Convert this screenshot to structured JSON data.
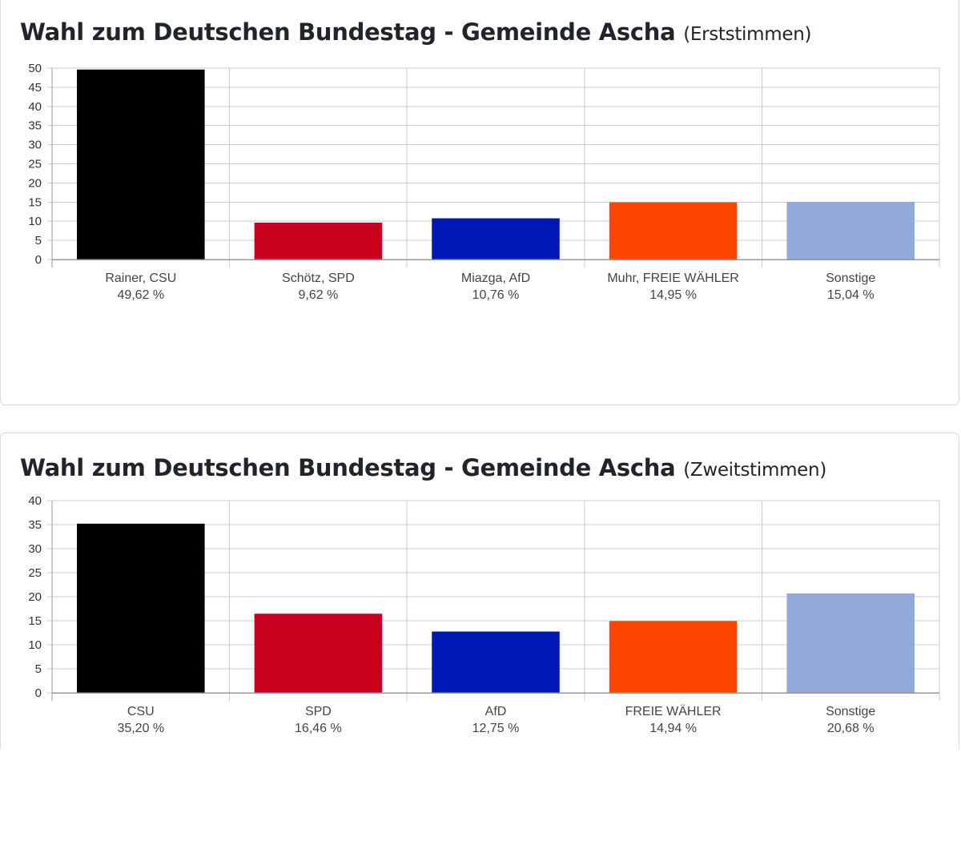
{
  "charts": [
    {
      "title_main": "Wahl zum Deutschen Bundestag - Gemeinde Ascha",
      "title_sub": "(Erststimmen)"
    },
    {
      "title_main": "Wahl zum Deutschen Bundestag - Gemeinde Ascha",
      "title_sub": "(Zweitstimmen)"
    }
  ],
  "chart_data": [
    {
      "type": "bar",
      "title": "Wahl zum Deutschen Bundestag - Gemeinde Ascha (Erststimmen)",
      "categories": [
        "Rainer, CSU",
        "Schötz, SPD",
        "Miazga, AfD",
        "Muhr, FREIE WÄHLER",
        "Sonstige"
      ],
      "values": [
        49.62,
        9.62,
        10.76,
        14.95,
        15.04
      ],
      "value_labels": [
        "49,62 %",
        "9,62 %",
        "10,76 %",
        "14,95 %",
        "15,04 %"
      ],
      "colors": [
        "#000000",
        "#c8001e",
        "#0018b5",
        "#ff4600",
        "#93a9d9"
      ],
      "ylim": [
        0,
        50
      ],
      "yticks": [
        0,
        5,
        10,
        15,
        20,
        25,
        30,
        35,
        40,
        45,
        50
      ],
      "grid": true,
      "xlabel": "",
      "ylabel": ""
    },
    {
      "type": "bar",
      "title": "Wahl zum Deutschen Bundestag - Gemeinde Ascha (Zweitstimmen)",
      "categories": [
        "CSU",
        "SPD",
        "AfD",
        "FREIE WÄHLER",
        "Sonstige"
      ],
      "values": [
        35.2,
        16.46,
        12.75,
        14.94,
        20.68
      ],
      "value_labels": [
        "35,20 %",
        "16,46 %",
        "12,75 %",
        "14,94 %",
        "20,68 %"
      ],
      "colors": [
        "#000000",
        "#c8001e",
        "#0018b5",
        "#ff4600",
        "#93a9d9"
      ],
      "ylim": [
        0,
        40
      ],
      "yticks": [
        0,
        5,
        10,
        15,
        20,
        25,
        30,
        35,
        40
      ],
      "grid": true,
      "xlabel": "",
      "ylabel": ""
    }
  ]
}
